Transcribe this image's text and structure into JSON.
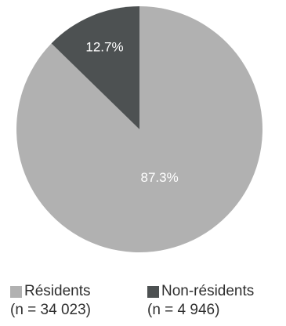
{
  "chart_data": {
    "type": "pie",
    "title": "",
    "slices": [
      {
        "label": "Résidents",
        "count_label": "(n = 34 023)",
        "value": 87.3,
        "value_label": "87.3%",
        "color": "#b1b1b1"
      },
      {
        "label": "Non-résidents",
        "count_label": "(n = 4 946)",
        "value": 12.7,
        "value_label": "12.7%",
        "color": "#4d5152"
      }
    ],
    "start_angle_deg": 0,
    "direction": "clockwise",
    "legend_position": "bottom"
  }
}
